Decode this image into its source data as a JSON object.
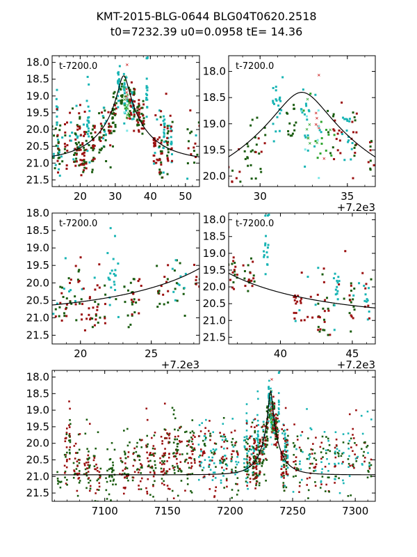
{
  "title_line1": "KMT-2015-BLG-0644 BLG04T0620.2518",
  "title_line2": "t0=7232.39 u0=0.0958 tE=  14.36",
  "colors": {
    "dark_green": "#1a5c10",
    "dark_red": "#9b1010",
    "cyan": "#18b4b4",
    "light_cyan": "#7fe8e8",
    "bright_green": "#2fa52f",
    "red_x": "#cc2a2a",
    "model": "#000000"
  },
  "model": {
    "t0": 7232.39,
    "u0": 0.0958,
    "tE": 14.36,
    "base_mag": 20.95
  },
  "chart_data": [
    {
      "id": "p1",
      "type": "scatter",
      "annotation": "t-7200.0",
      "xlim": [
        12,
        54
      ],
      "ylim": [
        21.7,
        17.8
      ],
      "xticks": [
        20,
        30,
        40,
        50
      ],
      "xtick_labels": [
        "20",
        "30",
        "40",
        "50"
      ],
      "yticks": [
        18.0,
        18.5,
        19.0,
        19.5,
        20.0,
        20.5,
        21.0,
        21.5
      ],
      "ytick_labels": [
        "18.0",
        "18.5",
        "19.0",
        "19.5",
        "20.0",
        "20.5",
        "21.0",
        "21.5"
      ],
      "offset_text": ""
    },
    {
      "id": "p2",
      "type": "scatter",
      "annotation": "t-7200.0",
      "xlim": [
        28.2,
        36.6
      ],
      "ylim": [
        20.2,
        17.7
      ],
      "xticks": [
        30,
        35
      ],
      "xtick_labels": [
        "30",
        "35"
      ],
      "yticks": [
        18.0,
        18.5,
        19.0,
        19.5,
        20.0
      ],
      "ytick_labels": [
        "18.0",
        "18.5",
        "19.0",
        "19.5",
        "20.0"
      ],
      "offset_text": "+7.2e3"
    },
    {
      "id": "p3",
      "type": "scatter",
      "annotation": "t-7200.0",
      "xlim": [
        18.0,
        28.4
      ],
      "ylim": [
        21.75,
        18.0
      ],
      "xticks": [
        20,
        25
      ],
      "xtick_labels": [
        "20",
        "25"
      ],
      "yticks": [
        18.0,
        18.5,
        19.0,
        19.5,
        20.0,
        20.5,
        21.0,
        21.5
      ],
      "ytick_labels": [
        "18.0",
        "18.5",
        "19.0",
        "19.5",
        "20.0",
        "20.5",
        "21.0",
        "21.5"
      ],
      "offset_text": "+7.2e3"
    },
    {
      "id": "p4",
      "type": "scatter",
      "annotation": "t-7200.0",
      "xlim": [
        36.4,
        46.6
      ],
      "ylim": [
        21.7,
        17.8
      ],
      "xticks": [
        40,
        45
      ],
      "xtick_labels": [
        "40",
        "45"
      ],
      "yticks": [
        18.0,
        18.5,
        19.0,
        19.5,
        20.0,
        20.5,
        21.0,
        21.5
      ],
      "ytick_labels": [
        "18.0",
        "18.5",
        "19.0",
        "19.5",
        "20.0",
        "20.5",
        "21.0",
        "21.5"
      ],
      "offset_text": "+7.2e3"
    },
    {
      "id": "p5",
      "type": "scatter",
      "annotation": "",
      "xlim": [
        7058,
        7316
      ],
      "ylim": [
        21.75,
        17.8
      ],
      "xticks": [
        7100,
        7150,
        7200,
        7250,
        7300
      ],
      "xtick_labels": [
        "7100",
        "7150",
        "7200",
        "7250",
        "7300"
      ],
      "yticks": [
        18.0,
        18.5,
        19.0,
        19.5,
        20.0,
        20.5,
        21.0,
        21.5
      ],
      "ytick_labels": [
        "18.0",
        "18.5",
        "19.0",
        "19.5",
        "20.0",
        "20.5",
        "21.0",
        "21.5"
      ],
      "offset_text": ""
    }
  ],
  "clusters": [
    {
      "t": 7064,
      "n": 8,
      "m": 21.2,
      "s": 0.3,
      "tw": 2.0,
      "c": [
        "dark_green"
      ]
    },
    {
      "t": 7069,
      "n": 22,
      "m": 20.6,
      "s": 0.55,
      "tw": 1.0,
      "c": [
        "dark_green",
        "dark_red"
      ]
    },
    {
      "t": 7072,
      "n": 18,
      "m": 19.6,
      "s": 0.35,
      "tw": 0.6,
      "c": [
        "dark_red",
        "dark_green"
      ]
    },
    {
      "t": 7078,
      "n": 34,
      "m": 20.7,
      "s": 0.45,
      "tw": 3.0,
      "c": [
        "dark_green",
        "dark_red"
      ]
    },
    {
      "t": 7086,
      "n": 34,
      "m": 20.8,
      "s": 0.45,
      "tw": 3.0,
      "c": [
        "dark_red",
        "dark_green"
      ]
    },
    {
      "t": 7094,
      "n": 30,
      "m": 20.8,
      "s": 0.45,
      "tw": 3.0,
      "c": [
        "dark_green",
        "dark_red"
      ]
    },
    {
      "t": 7105,
      "n": 32,
      "m": 20.9,
      "s": 0.4,
      "tw": 4.0,
      "c": [
        "dark_green"
      ]
    },
    {
      "t": 7116,
      "n": 38,
      "m": 20.8,
      "s": 0.45,
      "tw": 4.0,
      "c": [
        "dark_green",
        "dark_red"
      ]
    },
    {
      "t": 7126,
      "n": 38,
      "m": 20.6,
      "s": 0.45,
      "tw": 4.0,
      "c": [
        "dark_green",
        "dark_red"
      ]
    },
    {
      "t": 7137,
      "n": 50,
      "m": 20.5,
      "s": 0.55,
      "tw": 4.0,
      "c": [
        "dark_green",
        "dark_red"
      ]
    },
    {
      "t": 7148,
      "n": 55,
      "m": 20.3,
      "s": 0.6,
      "tw": 4.0,
      "c": [
        "dark_green",
        "dark_red"
      ]
    },
    {
      "t": 7158,
      "n": 55,
      "m": 20.3,
      "s": 0.6,
      "tw": 4.0,
      "c": [
        "dark_green",
        "dark_red"
      ]
    },
    {
      "t": 7168,
      "n": 50,
      "m": 20.3,
      "s": 0.55,
      "tw": 4.0,
      "c": [
        "dark_green",
        "dark_red"
      ]
    },
    {
      "t": 7178,
      "n": 40,
      "m": 20.2,
      "s": 0.55,
      "tw": 3.0,
      "c": [
        "cyan",
        "dark_green",
        "dark_red"
      ]
    },
    {
      "t": 7186,
      "n": 40,
      "m": 20.4,
      "s": 0.55,
      "tw": 3.0,
      "c": [
        "dark_red",
        "dark_green",
        "cyan"
      ]
    },
    {
      "t": 7195,
      "n": 45,
      "m": 20.3,
      "s": 0.55,
      "tw": 3.0,
      "c": [
        "cyan",
        "dark_green",
        "dark_red"
      ]
    },
    {
      "t": 7204,
      "n": 40,
      "m": 20.5,
      "s": 0.55,
      "tw": 3.0,
      "c": [
        "dark_red",
        "dark_green",
        "cyan"
      ]
    },
    {
      "t": 7213,
      "n": 30,
      "m": 20.4,
      "s": 0.5,
      "tw": 2.0,
      "c": [
        "dark_green",
        "cyan"
      ]
    },
    {
      "t": 7220,
      "n": 30,
      "m": 20.3,
      "s": 0.5,
      "tw": 3.0,
      "c": [
        "cyan",
        "dark_green",
        "dark_red"
      ]
    },
    {
      "t": 7244,
      "n": 30,
      "m": 20.4,
      "s": 0.55,
      "tw": 3.0,
      "c": [
        "dark_red",
        "dark_green",
        "cyan"
      ]
    },
    {
      "t": 7254,
      "n": 35,
      "m": 20.5,
      "s": 0.55,
      "tw": 4.0,
      "c": [
        "cyan",
        "dark_green",
        "dark_red"
      ]
    },
    {
      "t": 7265,
      "n": 35,
      "m": 20.5,
      "s": 0.55,
      "tw": 4.0,
      "c": [
        "dark_green",
        "dark_red",
        "cyan"
      ]
    },
    {
      "t": 7276,
      "n": 35,
      "m": 20.4,
      "s": 0.55,
      "tw": 4.0,
      "c": [
        "dark_red",
        "dark_green",
        "cyan"
      ]
    },
    {
      "t": 7287,
      "n": 35,
      "m": 20.4,
      "s": 0.55,
      "tw": 4.0,
      "c": [
        "dark_green",
        "cyan",
        "dark_red"
      ]
    },
    {
      "t": 7298,
      "n": 32,
      "m": 20.4,
      "s": 0.6,
      "tw": 4.0,
      "c": [
        "cyan",
        "dark_green",
        "dark_red"
      ]
    },
    {
      "t": 7309,
      "n": 28,
      "m": 20.4,
      "s": 0.55,
      "tw": 4.0,
      "c": [
        "dark_green",
        "dark_red",
        "cyan"
      ]
    },
    {
      "t": 7214.0,
      "n": 14,
      "m": 20.8,
      "s": 0.4,
      "tw": 0.5,
      "c": [
        "dark_green",
        "cyan",
        "dark_red"
      ]
    },
    {
      "t": 7218.8,
      "n": 14,
      "m": 20.6,
      "s": 0.4,
      "tw": 0.5,
      "c": [
        "dark_red",
        "dark_green"
      ]
    },
    {
      "t": 7219.6,
      "n": 16,
      "m": 20.1,
      "s": 0.4,
      "tw": 0.5,
      "c": [
        "dark_green",
        "dark_red"
      ]
    },
    {
      "t": 7220.4,
      "n": 12,
      "m": 20.6,
      "s": 0.35,
      "tw": 0.4,
      "c": [
        "dark_red"
      ]
    },
    {
      "t": 7221.3,
      "n": 20,
      "m": 20.6,
      "s": 0.4,
      "tw": 0.5,
      "c": [
        "dark_green",
        "dark_red"
      ]
    },
    {
      "t": 7222.2,
      "n": 16,
      "m": 19.4,
      "s": 0.65,
      "tw": 0.3,
      "c": [
        "cyan"
      ]
    },
    {
      "t": 7223.5,
      "n": 18,
      "m": 20.4,
      "s": 0.4,
      "tw": 0.5,
      "c": [
        "dark_green"
      ]
    },
    {
      "t": 7224.0,
      "n": 10,
      "m": 20.3,
      "s": 0.4,
      "tw": 0.4,
      "c": [
        "dark_red"
      ]
    },
    {
      "t": 7225.7,
      "n": 16,
      "m": 20.2,
      "s": 0.4,
      "tw": 0.5,
      "c": [
        "dark_green",
        "dark_red"
      ]
    },
    {
      "t": 7227.0,
      "n": 18,
      "m": 20.0,
      "s": 0.4,
      "tw": 0.5,
      "c": [
        "dark_green",
        "cyan"
      ]
    },
    {
      "t": 7228.4,
      "n": 14,
      "m": 19.9,
      "s": 0.4,
      "tw": 0.5,
      "c": [
        "dark_green",
        "dark_red"
      ]
    },
    {
      "t": 7229.3,
      "n": 14,
      "m": 19.5,
      "s": 0.35,
      "tw": 0.3,
      "c": [
        "dark_green"
      ]
    },
    {
      "t": 7230.0,
      "n": 14,
      "m": 19.3,
      "s": 0.35,
      "tw": 0.3,
      "c": [
        "dark_red",
        "dark_green"
      ]
    },
    {
      "t": 7231.0,
      "n": 22,
      "m": 18.7,
      "s": 0.35,
      "tw": 0.3,
      "c": [
        "cyan"
      ]
    },
    {
      "t": 7231.8,
      "n": 14,
      "m": 19.0,
      "s": 0.3,
      "tw": 0.3,
      "c": [
        "dark_green"
      ]
    },
    {
      "t": 7232.6,
      "n": 26,
      "m": 19.0,
      "s": 0.4,
      "tw": 0.3,
      "c": [
        "light_cyan",
        "cyan",
        "bright_green"
      ]
    },
    {
      "t": 7233.4,
      "n": 22,
      "m": 19.0,
      "s": 0.45,
      "tw": 0.3,
      "c": [
        "cyan",
        "light_cyan",
        "red_x",
        "bright_green"
      ]
    },
    {
      "t": 7234.0,
      "n": 12,
      "m": 19.1,
      "s": 0.35,
      "tw": 0.3,
      "c": [
        "dark_green",
        "bright_green"
      ]
    },
    {
      "t": 7234.4,
      "n": 12,
      "m": 19.1,
      "s": 0.3,
      "tw": 0.3,
      "c": [
        "dark_red"
      ]
    },
    {
      "t": 7235.0,
      "n": 16,
      "m": 19.2,
      "s": 0.35,
      "tw": 0.3,
      "c": [
        "cyan"
      ]
    },
    {
      "t": 7235.4,
      "n": 14,
      "m": 19.1,
      "s": 0.3,
      "tw": 0.2,
      "c": [
        "dark_red",
        "dark_green"
      ]
    },
    {
      "t": 7236.6,
      "n": 24,
      "m": 19.6,
      "s": 0.3,
      "tw": 0.4,
      "c": [
        "dark_red",
        "dark_green"
      ]
    },
    {
      "t": 7237.8,
      "n": 20,
      "m": 19.7,
      "s": 0.25,
      "tw": 0.4,
      "c": [
        "dark_red",
        "dark_green"
      ]
    },
    {
      "t": 7239.0,
      "n": 16,
      "m": 18.7,
      "s": 0.45,
      "tw": 0.2,
      "c": [
        "cyan"
      ]
    },
    {
      "t": 7241.2,
      "n": 14,
      "m": 20.3,
      "s": 0.4,
      "tw": 0.3,
      "c": [
        "dark_red"
      ]
    },
    {
      "t": 7242.9,
      "n": 18,
      "m": 20.6,
      "s": 0.55,
      "tw": 0.3,
      "c": [
        "dark_red",
        "dark_green"
      ]
    },
    {
      "t": 7243.9,
      "n": 14,
      "m": 20.2,
      "s": 0.35,
      "tw": 0.2,
      "c": [
        "cyan"
      ]
    },
    {
      "t": 7245.0,
      "n": 14,
      "m": 20.7,
      "s": 0.45,
      "tw": 0.2,
      "c": [
        "dark_red",
        "dark_green"
      ]
    },
    {
      "t": 7246.0,
      "n": 12,
      "m": 20.4,
      "s": 0.3,
      "tw": 0.2,
      "c": [
        "cyan",
        "dark_red"
      ]
    },
    {
      "t": 7213.4,
      "n": 10,
      "m": 19.6,
      "s": 0.5,
      "tw": 0.2,
      "c": [
        "cyan",
        "dark_red"
      ]
    },
    {
      "t": 7216.0,
      "n": 12,
      "m": 20.4,
      "s": 0.4,
      "tw": 0.4,
      "c": [
        "dark_green",
        "dark_red"
      ]
    }
  ]
}
